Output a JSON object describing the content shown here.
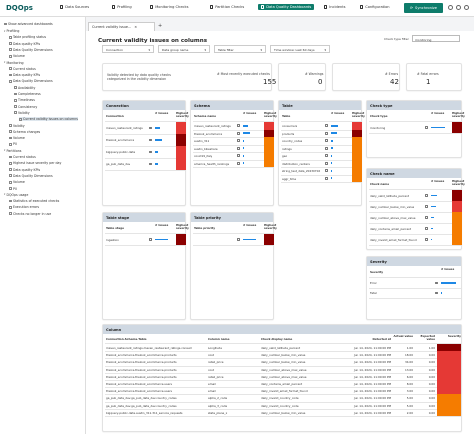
{
  "logo": {
    "text": "DQOps"
  },
  "nav": {
    "items": [
      {
        "label": "Data Sources"
      },
      {
        "label": "Profiling"
      },
      {
        "label": "Monitoring Checks"
      },
      {
        "label": "Partition Checks"
      },
      {
        "label": "Data Quality Dashboards"
      },
      {
        "label": "Incidents"
      },
      {
        "label": "Configuration"
      }
    ],
    "synchronize": "Synchronize"
  },
  "sidebar": {
    "show_advanced": "Show advanced dashboards",
    "items": [
      {
        "label": "Profiling",
        "level": 0,
        "arrow": "▾"
      },
      {
        "label": "Table profiling status",
        "level": 1
      },
      {
        "label": "Data quality KPIs",
        "level": 1
      },
      {
        "label": "Data Quality Dimensions",
        "level": 1
      },
      {
        "label": "Volume",
        "level": 1
      },
      {
        "label": "Monitoring",
        "level": 0,
        "arrow": "▾"
      },
      {
        "label": "Current status",
        "level": 1
      },
      {
        "label": "Data quality KPIs",
        "level": 1
      },
      {
        "label": "Data Quality Dimensions",
        "level": 1
      },
      {
        "label": "Availability",
        "level": 2
      },
      {
        "label": "Completeness",
        "level": 2
      },
      {
        "label": "Timeliness",
        "level": 2
      },
      {
        "label": "Consistency",
        "level": 2
      },
      {
        "label": "Validity",
        "level": 2
      },
      {
        "label": "Current validity issues on columns",
        "level": 3,
        "selected": true
      },
      {
        "label": "Validity",
        "level": 1
      },
      {
        "label": "Schema changes",
        "level": 1
      },
      {
        "label": "Volume",
        "level": 1
      },
      {
        "label": "PII",
        "level": 1
      },
      {
        "label": "Partitions",
        "level": 0,
        "arrow": "▾"
      },
      {
        "label": "Current status",
        "level": 1
      },
      {
        "label": "Highest issue severity per day",
        "level": 1
      },
      {
        "label": "Data quality KPIs",
        "level": 1
      },
      {
        "label": "Data Quality Dimensions",
        "level": 1
      },
      {
        "label": "Volume",
        "level": 1
      },
      {
        "label": "PII",
        "level": 1
      },
      {
        "label": "DQOps usage",
        "level": 0,
        "arrow": "▾"
      },
      {
        "label": "Statistics of executed checks",
        "level": 1
      },
      {
        "label": "Execution errors",
        "level": 1
      },
      {
        "label": "Checks no longer in use",
        "level": 1
      }
    ]
  },
  "tab": {
    "label": "Current validity issue..."
  },
  "page": {
    "title": "Current validity issues on columns",
    "check_type_filter_label": "Check type filter",
    "check_type_filter_value": "monitoring"
  },
  "filters": [
    {
      "label": "Connection"
    },
    {
      "label": "Data group name"
    },
    {
      "label": "Table filter"
    },
    {
      "label": "Time window: Last 60 days"
    }
  ],
  "kpis": {
    "description": "Validity detected by data quality checks categorized in the validity dimension",
    "executed_label": "# Most recently executed checks",
    "executed_value": "155",
    "warnings_label": "# Warnings",
    "warnings_value": "0",
    "errors_label": "# Errors",
    "errors_value": "42",
    "fatal_label": "# Fatal errors",
    "fatal_value": "1"
  },
  "colors": {
    "error": "#e53935",
    "warning": "#fbc02d",
    "orange": "#f57c00",
    "fatal": "#8b0000",
    "bar": "#1e88e5",
    "header": "#cfd8e2",
    "brand": "#0e7c6b"
  },
  "connection": {
    "title": "Connection",
    "columns": [
      "Connection",
      "# Issues",
      "Highest severity"
    ],
    "rows": [
      {
        "name": "maven_restaurant_ratings",
        "issues": "7",
        "severity": "error",
        "share": 0.3
      },
      {
        "name": "thelook_ecommerce",
        "issues": "9",
        "severity": "fatal",
        "share": 0.4
      },
      {
        "name": "bigquery-public-data",
        "issues": "3",
        "severity": "error",
        "share": 0.15
      },
      {
        "name": "ga_pub_data_dev",
        "issues": "3",
        "severity": "error",
        "share": 0.15
      }
    ]
  },
  "schema": {
    "title": "Schema",
    "columns": [
      "Schema name",
      "# Issues",
      "Highest severity"
    ],
    "rows": [
      {
        "name": "maven_restaurant_ratings",
        "issues": "7",
        "severity": "error",
        "share": 0.3
      },
      {
        "name": "thelook_ecommerce",
        "issues": "9",
        "severity": "fatal",
        "share": 0.4
      },
      {
        "name": "austin_311",
        "issues": "",
        "severity": "orange",
        "share": 0.05
      },
      {
        "name": "austin_bikeshare",
        "issues": "",
        "severity": "orange",
        "share": 0.05
      },
      {
        "name": "covid19_italy",
        "issues": "",
        "severity": "orange",
        "share": 0.05
      },
      {
        "name": "america_health_rankings",
        "issues": "",
        "severity": "orange",
        "share": 0.05
      }
    ]
  },
  "table": {
    "title": "Table",
    "columns": [
      "Table",
      "# Issues",
      "Highest severity"
    ],
    "rows": [
      {
        "name": "consumers",
        "issues": "",
        "severity": "error",
        "share": 0.4
      },
      {
        "name": "products",
        "issues": "",
        "severity": "fatal",
        "share": 0.35
      },
      {
        "name": "country_codes",
        "issues": "",
        "severity": "orange",
        "share": 0.1
      },
      {
        "name": "ratings",
        "issues": "",
        "severity": "orange",
        "share": 0.1
      },
      {
        "name": "geo",
        "issues": "",
        "severity": "orange",
        "share": 0.08
      },
      {
        "name": "distribution_centers",
        "issues": "",
        "severity": "orange",
        "share": 0.06
      },
      {
        "name": "string_test_data_20230702",
        "issues": "",
        "severity": "orange",
        "share": 0.05
      },
      {
        "name": "aggr_time",
        "issues": "",
        "severity": "orange",
        "share": 0.04
      }
    ]
  },
  "check_type": {
    "title": "Check type",
    "columns": [
      "Check type",
      "# Issues",
      "Highest severity"
    ],
    "rows": [
      {
        "name": "monitoring",
        "issues": "",
        "severity": "fatal",
        "share": 0.8
      }
    ]
  },
  "check_name": {
    "title": "Check name",
    "columns": [
      "Check name",
      "# Issues",
      "Highest severity"
    ],
    "rows": [
      {
        "name": "daily_valid_latitude_percent",
        "issues": "",
        "severity": "fatal",
        "share": 0.35
      },
      {
        "name": "daily_number_below_min_value",
        "issues": "",
        "severity": "error",
        "share": 0.25
      },
      {
        "name": "daily_number_above_max_value",
        "issues": "",
        "severity": "orange",
        "share": 0.15
      },
      {
        "name": "daily_contains_email_percent",
        "issues": "",
        "severity": "orange",
        "share": 0.1
      },
      {
        "name": "daily_invalid_email_format_found",
        "issues": "",
        "severity": "orange",
        "share": 0.08
      }
    ]
  },
  "severity_panel": {
    "title": "Severity",
    "columns": [
      "Severity",
      "# Issues"
    ],
    "rows": [
      {
        "name": "Error",
        "share": 0.85
      },
      {
        "name": "Fatal",
        "share": 0.05
      }
    ]
  },
  "table_stage": {
    "title": "Table stage",
    "columns": [
      "Table stage",
      "# Issues",
      "Highest severity"
    ],
    "rows": [
      {
        "name": "Ingestion",
        "issues": "",
        "severity": "fatal",
        "share": 0.7
      }
    ]
  },
  "table_priority": {
    "title": "Table priority",
    "columns": [
      "Table priority",
      "# Issues",
      "Highest severity"
    ],
    "rows": [
      {
        "name": "",
        "issues": "",
        "severity": "fatal",
        "share": 0.7
      }
    ]
  },
  "column_table": {
    "title": "Column",
    "columns": [
      "Connection.Schema.Table",
      "Column name",
      "Check display name",
      "Detected at",
      "Actual value",
      "Expected value",
      "Severity"
    ],
    "rows": [
      {
        "table": "maven_restaurant_ratings.maven_restaurant_ratings.consum",
        "column": "Longitude",
        "check": "daily_valid_latitude_percent",
        "detected": "Jun 14, 2024, 11:00:00 PM",
        "actual": "1.00",
        "expected": "1.00",
        "severity": "fatal"
      },
      {
        "table": "thelook_ecommerce.thelook_ecommerce.products",
        "column": "cost",
        "check": "daily_number_below_min_value",
        "detected": "Jun 14, 2024, 11:00:00 PM",
        "actual": "18.00",
        "expected": "0.00",
        "severity": "error"
      },
      {
        "table": "thelook_ecommerce.thelook_ecommerce.products",
        "column": "retail_price",
        "check": "daily_number_below_min_value",
        "detected": "Jun 14, 2024, 11:00:00 PM",
        "actual": "34.00",
        "expected": "0.00",
        "severity": "error"
      },
      {
        "table": "thelook_ecommerce.thelook_ecommerce.products",
        "column": "cost",
        "check": "daily_number_above_max_value",
        "detected": "Jun 14, 2024, 11:00:00 PM",
        "actual": "13.00",
        "expected": "0.00",
        "severity": "error"
      },
      {
        "table": "thelook_ecommerce.thelook_ecommerce.products",
        "column": "retail_price",
        "check": "daily_number_above_max_value",
        "detected": "Jun 14, 2024, 11:00:00 PM",
        "actual": "6.00",
        "expected": "0.00",
        "severity": "error"
      },
      {
        "table": "thelook_ecommerce.thelook_ecommerce.users",
        "column": "email",
        "check": "daily_contains_email_percent",
        "detected": "Jun 14, 2024, 11:00:00 PM",
        "actual": "8.00",
        "expected": "0.00",
        "severity": "error"
      },
      {
        "table": "thelook_ecommerce.thelook_ecommerce.users",
        "column": "email",
        "check": "daily_invalid_email_format_found",
        "detected": "Jun 14, 2024, 11:00:00 PM",
        "actual": "3.00",
        "expected": "0.00",
        "severity": "error"
      },
      {
        "table": "ga_pub_data_dev.ga_pub_data_dev.country_codes",
        "column": "alpha_2_code",
        "check": "daily_invalid_country_code",
        "detected": "Jun 14, 2024, 11:00:00 PM",
        "actual": "5.00",
        "expected": "0.00",
        "severity": "orange"
      },
      {
        "table": "ga_pub_data_dev.ga_pub_data_dev.country_codes",
        "column": "alpha_3_code",
        "check": "daily_invalid_country_code",
        "detected": "Jun 14, 2024, 11:00:00 PM",
        "actual": "5.00",
        "expected": "0.00",
        "severity": "orange"
      },
      {
        "table": "bigquery-public-data.austin_311.311_service_requests",
        "column": "state_plane_x",
        "check": "daily_number_below_min_value",
        "detected": "Jun 14, 2024, 11:00:00 PM",
        "actual": "2.00",
        "expected": "0.00",
        "severity": "orange"
      }
    ]
  }
}
